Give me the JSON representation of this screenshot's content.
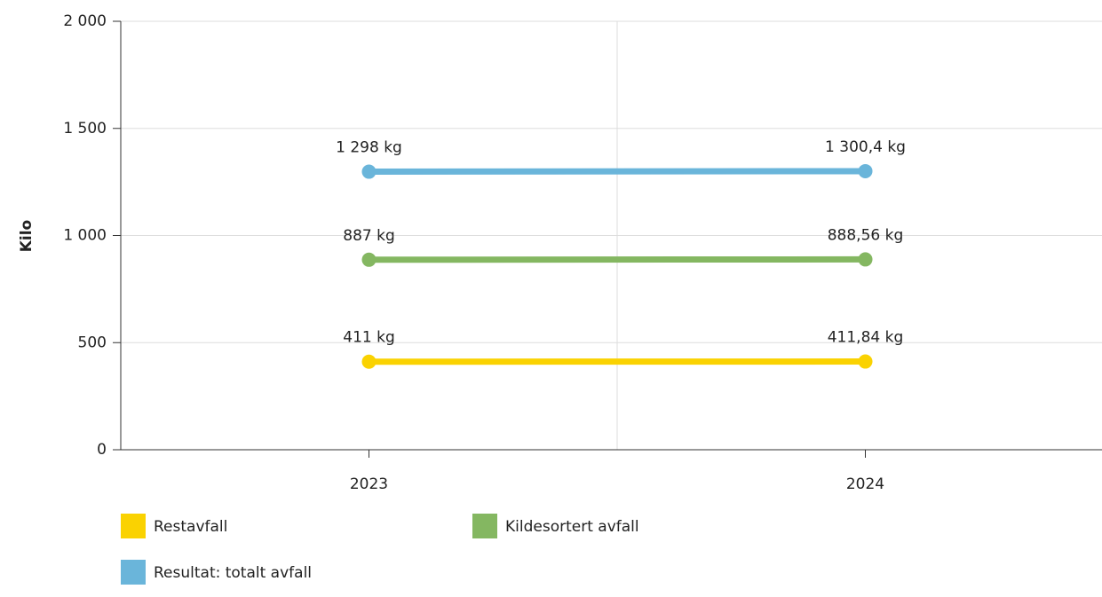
{
  "chart_data": {
    "type": "line",
    "y_label": "Kilo",
    "categories": [
      "2023",
      "2024"
    ],
    "series": [
      {
        "name": "Restavfall",
        "color": "#fad201",
        "values": [
          411,
          411.84
        ],
        "value_labels": [
          "411 kg",
          "411,84 kg"
        ]
      },
      {
        "name": "Kildesortert avfall",
        "color": "#84b761",
        "values": [
          887,
          888.56
        ],
        "value_labels": [
          "887 kg",
          "888,56 kg"
        ]
      },
      {
        "name": "Resultat: totalt avfall",
        "color": "#6ab5da",
        "values": [
          1298,
          1300.4
        ],
        "value_labels": [
          "1 298 kg",
          "1 300,4 kg"
        ]
      }
    ],
    "ylim": [
      0,
      2000
    ],
    "yticks": [
      0,
      500,
      {
        "value": 1000,
        "label": "1 000"
      },
      {
        "value": 1500,
        "label": "1 500"
      },
      {
        "value": 2000,
        "label": "2 000"
      }
    ],
    "grid": true,
    "legend": "bottom"
  }
}
